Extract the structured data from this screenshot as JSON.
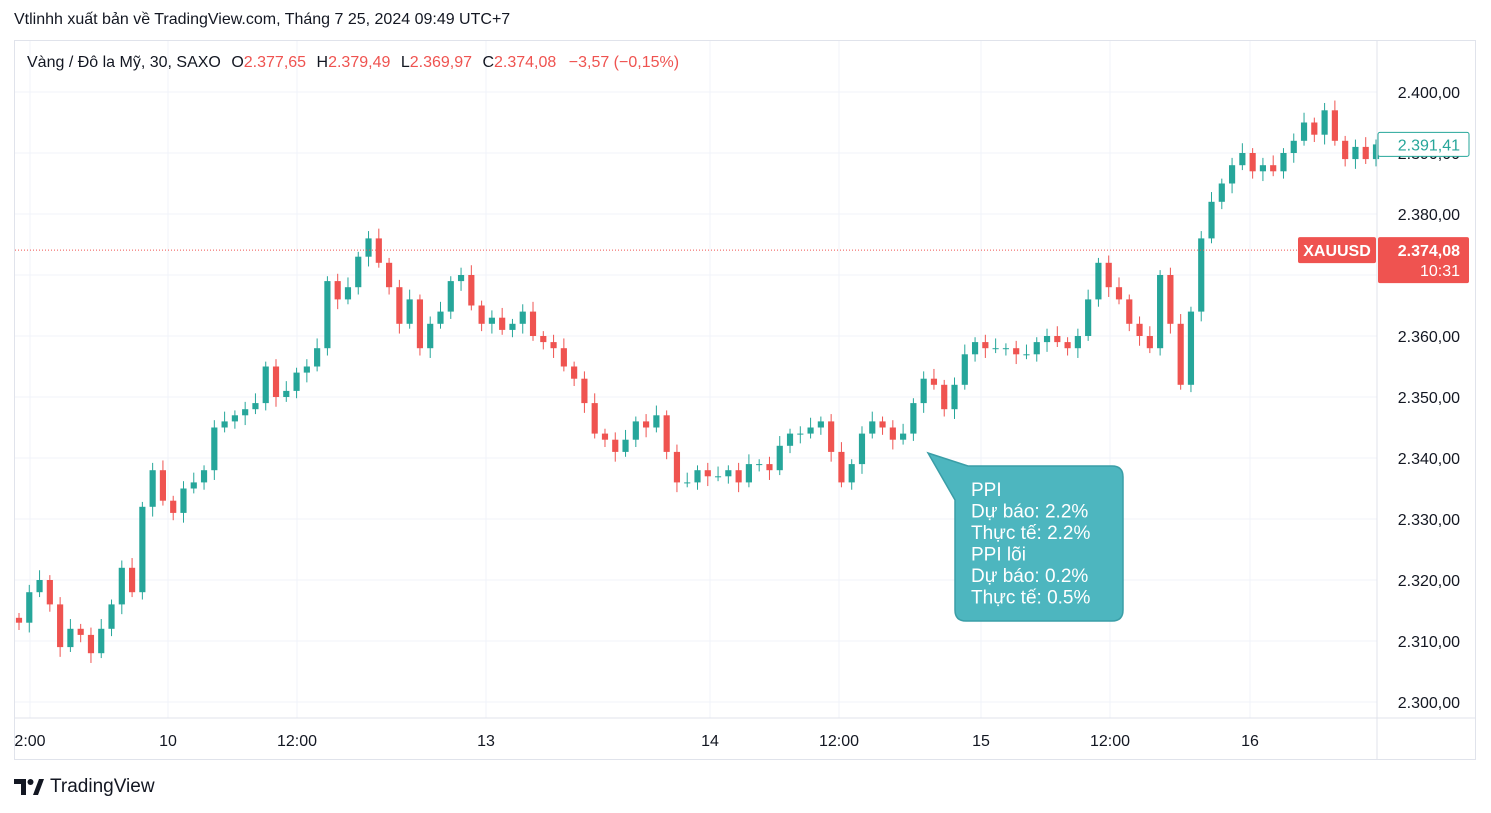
{
  "caption": "Vtlinhh xuất bản về TradingView.com, Tháng 7 25, 2024 09:49 UTC+7",
  "legend": {
    "symbol": "Vàng / Đô la Mỹ, 30, SAXO",
    "open_label": "O",
    "open": "2.377,65",
    "high_label": "H",
    "high": "2.379,49",
    "low_label": "L",
    "low": "2.369,97",
    "close_label": "C",
    "close": "2.374,08",
    "change": "−3,57 (−0,15%)"
  },
  "colors": {
    "up": "#26a69a",
    "down": "#ef5350",
    "callout": "#4db6bf",
    "last_price_tag": "#ef5350",
    "current_tag_border": "#26a69a"
  },
  "chart_data": {
    "type": "candlestick",
    "title": "Vàng / Đô la Mỹ, 30, SAXO",
    "x_ticks": [
      "2:00",
      "10",
      "12:00",
      "13",
      "14",
      "12:00",
      "15",
      "12:00",
      "16"
    ],
    "y_ticks": [
      "2.400,00",
      "2.390,00",
      "2.380,00",
      "2.370,00",
      "2.360,00",
      "2.350,00",
      "2.340,00",
      "2.330,00",
      "2.320,00",
      "2.310,00",
      "2.300,00"
    ],
    "ylim": [
      2297.5,
      2408
    ],
    "grid": true,
    "last_price": {
      "symbol": "XAUUSD",
      "price": 2374.08,
      "label": "2.374,08",
      "countdown": "10:31"
    },
    "current_price": {
      "price": 2391.41,
      "label": "2.391,41"
    },
    "closes": [
      2313,
      2318,
      2320,
      2316,
      2309,
      2312,
      2311,
      2308,
      2312,
      2316,
      2322,
      2318,
      2332,
      2338,
      2333,
      2331,
      2335,
      2336,
      2338,
      2345,
      2346,
      2347,
      2348,
      2349,
      2355,
      2350,
      2351,
      2354,
      2355,
      2358,
      2369,
      2366,
      2368,
      2373,
      2376,
      2372,
      2368,
      2362,
      2366,
      2358,
      2362,
      2364,
      2369,
      2370,
      2365,
      2362,
      2363,
      2361,
      2362,
      2364,
      2360,
      2359,
      2358,
      2355,
      2353,
      2349,
      2344,
      2343,
      2341,
      2343,
      2346,
      2345,
      2347,
      2341,
      2336,
      2336,
      2338,
      2337,
      2337,
      2338,
      2336,
      2339,
      2339,
      2338,
      2342,
      2344,
      2344,
      2345,
      2346,
      2341,
      2336,
      2339,
      2344,
      2346,
      2345,
      2343,
      2344,
      2349,
      2353,
      2352,
      2348,
      2352,
      2357,
      2359,
      2358,
      2358,
      2358,
      2357,
      2357,
      2359,
      2360,
      2359,
      2358,
      2360,
      2366,
      2372,
      2368,
      2366,
      2362,
      2360,
      2358,
      2370,
      2362,
      2352,
      2364,
      2376,
      2382,
      2385,
      2388,
      2390,
      2387,
      2388,
      2387,
      2390,
      2392,
      2395,
      2393,
      2397,
      2392,
      2389,
      2391,
      2389,
      2391.41
    ],
    "annotation": {
      "lines": [
        "PPI",
        "Dự báo: 2.2%",
        "Thực tế: 2.2%",
        "PPI lõi",
        "Dự báo: 0.2%",
        "Thực tế: 0.5%"
      ]
    }
  },
  "branding": {
    "text": "TradingView",
    "icon": "tradingview-logo"
  }
}
